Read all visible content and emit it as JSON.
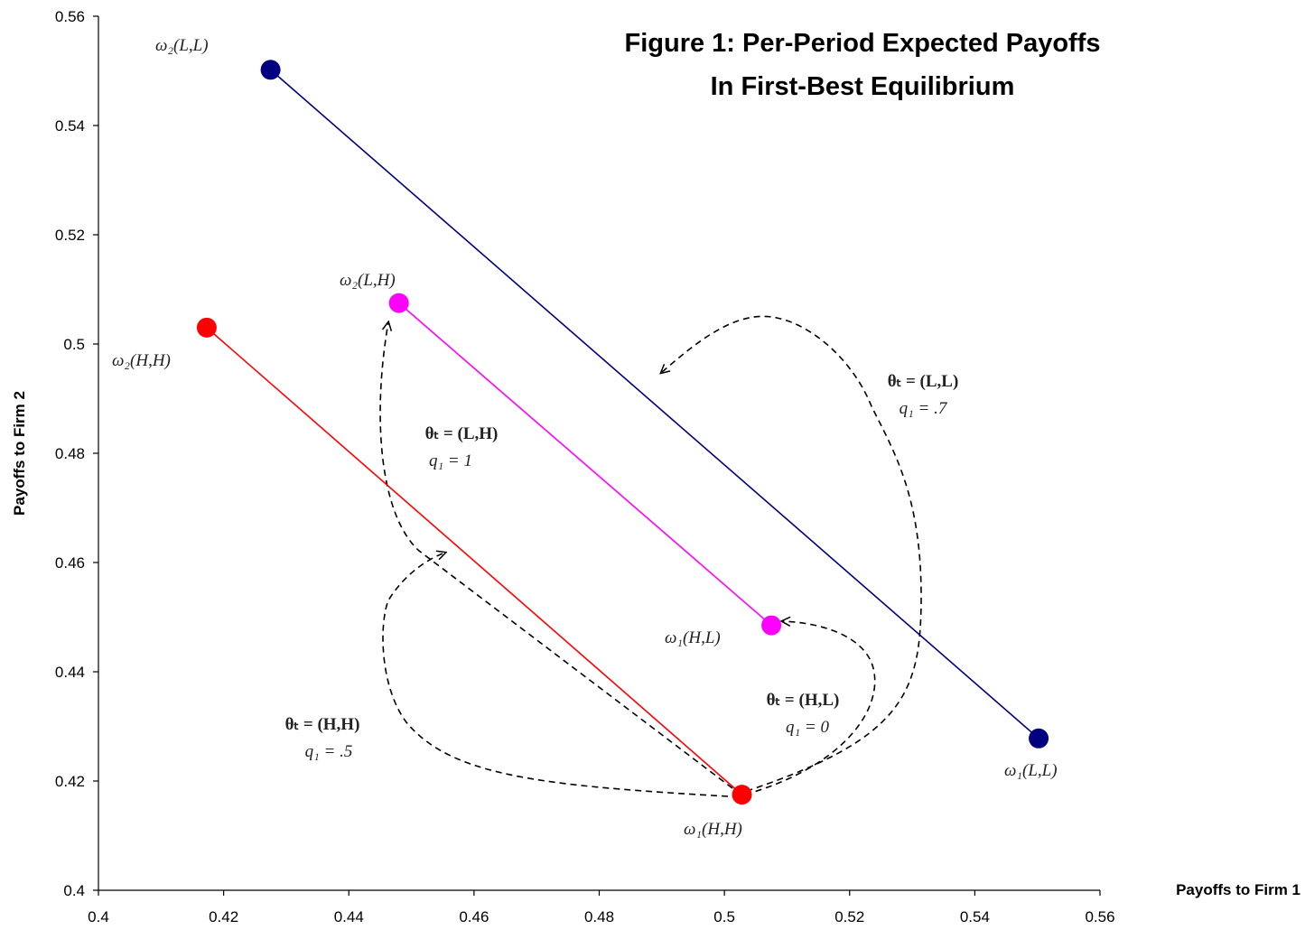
{
  "chart_data": {
    "type": "scatter",
    "title_line1": "Figure 1: Per-Period Expected Payoffs",
    "title_line2": "In First-Best Equilibrium",
    "xlabel": "Payoffs to Firm 1",
    "ylabel": "Payoffs to Firm 2",
    "xlim": [
      0.4,
      0.56
    ],
    "ylim": [
      0.4,
      0.56
    ],
    "x_ticks": [
      "0.4",
      "0.42",
      "0.44",
      "0.46",
      "0.48",
      "0.5",
      "0.52",
      "0.54",
      "0.56"
    ],
    "y_ticks": [
      "0.4",
      "0.42",
      "0.44",
      "0.46",
      "0.48",
      "0.5",
      "0.52",
      "0.54",
      "0.56"
    ],
    "grid": false,
    "legend": "none",
    "series": [
      {
        "color": "#000080",
        "points": [
          {
            "label": "ω₂(L,L)",
            "x": 0.4275,
            "y": 0.5502
          },
          {
            "label": "ω₁(L,L)",
            "x": 0.5502,
            "y": 0.4278
          }
        ]
      },
      {
        "color": "#ff00ff",
        "points": [
          {
            "label": "ω₂(L,H)",
            "x": 0.448,
            "y": 0.5075
          },
          {
            "label": "ω₁(H,L)",
            "x": 0.5075,
            "y": 0.4485
          }
        ]
      },
      {
        "color": "#ff0000",
        "points": [
          {
            "label": "ω₂(H,H)",
            "x": 0.4173,
            "y": 0.503
          },
          {
            "label": "ω₁(H,H)",
            "x": 0.5028,
            "y": 0.4175
          }
        ]
      }
    ],
    "annotations": [
      {
        "line1": "θₜ = (L,L)",
        "line2": "q₁ = .7"
      },
      {
        "line1": "θₜ = (L,H)",
        "line2": "q₁ = 1"
      },
      {
        "line1": "θₜ = (H,L)",
        "line2": "q₁ = 0"
      },
      {
        "line1": "θₜ = (H,H)",
        "line2": "q₁ = .5"
      }
    ]
  }
}
